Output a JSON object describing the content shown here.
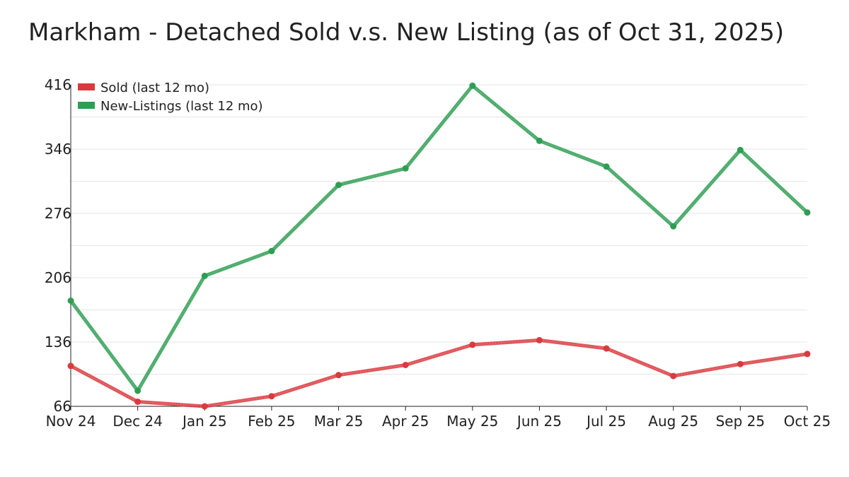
{
  "chart_data": {
    "type": "line",
    "title": "Markham - Detached Sold v.s. New Listing (as of Oct 31, 2025)",
    "xlabel": "",
    "ylabel": "",
    "categories": [
      "Nov 24",
      "Dec 24",
      "Jan 25",
      "Feb 25",
      "Mar 25",
      "Apr 25",
      "May 25",
      "Jun 25",
      "Jul 25",
      "Aug 25",
      "Sep 25",
      "Oct 25"
    ],
    "ylim": [
      66,
      416
    ],
    "yticks": [
      66,
      136,
      206,
      276,
      346,
      416
    ],
    "yticks_labels": [
      "66",
      "136",
      "206",
      "276",
      "346",
      "416"
    ],
    "minor_grid": [
      101,
      171,
      241,
      311,
      381
    ],
    "grid": true,
    "legend_position": "top-left",
    "series": [
      {
        "name": "Sold (last 12 mo)",
        "color": "#d93a3e",
        "values": [
          110,
          71,
          66,
          77,
          100,
          111,
          133,
          138,
          129,
          99,
          112,
          123
        ]
      },
      {
        "name": "New-Listings (last 12 mo)",
        "color": "#2e9e52",
        "values": [
          181,
          83,
          208,
          235,
          307,
          325,
          415,
          355,
          327,
          262,
          345,
          277
        ]
      }
    ]
  }
}
